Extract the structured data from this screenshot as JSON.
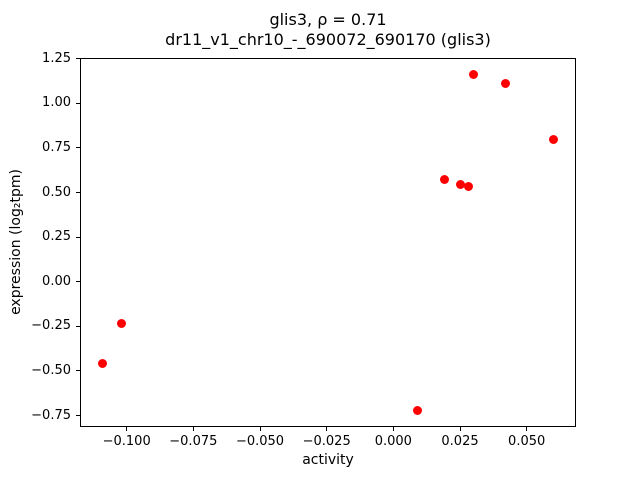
{
  "chart_data": {
    "type": "scatter",
    "title": "glis3, ρ = 0.71",
    "subtitle": "dr11_v1_chr10_-_690072_690170 (glis3)",
    "xlabel": "activity",
    "ylabel": "expression (log₂tpm)",
    "xlim": [
      -0.1175,
      0.0685
    ],
    "ylim": [
      -0.814,
      1.254
    ],
    "x_ticks": [
      -0.1,
      -0.075,
      -0.05,
      -0.025,
      0.0,
      0.025,
      0.05
    ],
    "x_tick_labels": [
      "−0.100",
      "−0.075",
      "−0.050",
      "−0.025",
      "0.000",
      "0.025",
      "0.050"
    ],
    "y_ticks": [
      -0.75,
      -0.5,
      -0.25,
      0.0,
      0.25,
      0.5,
      0.75,
      1.0,
      1.25
    ],
    "y_tick_labels": [
      "−0.75",
      "−0.50",
      "−0.25",
      "0.00",
      "0.25",
      "0.50",
      "0.75",
      "1.00",
      "1.25"
    ],
    "marker_color": "#ff0000",
    "grid": false,
    "legend": "none",
    "points": [
      [
        -0.109,
        -0.46
      ],
      [
        -0.102,
        -0.235
      ],
      [
        0.009,
        -0.72
      ],
      [
        0.019,
        0.575
      ],
      [
        0.025,
        0.545
      ],
      [
        0.028,
        0.535
      ],
      [
        0.03,
        1.16
      ],
      [
        0.042,
        1.11
      ],
      [
        0.06,
        0.8
      ]
    ]
  }
}
